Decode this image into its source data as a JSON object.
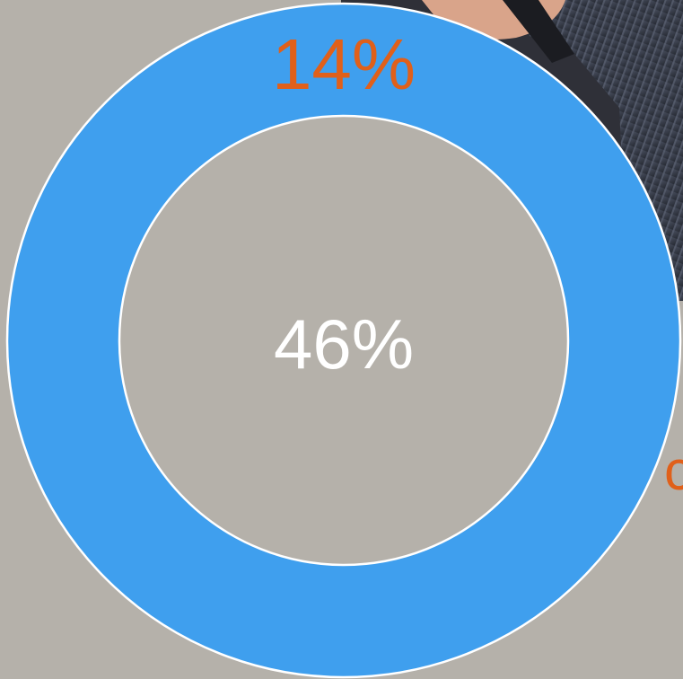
{
  "labels": {
    "top": "14%",
    "center": "46%",
    "edge": "c"
  }
}
